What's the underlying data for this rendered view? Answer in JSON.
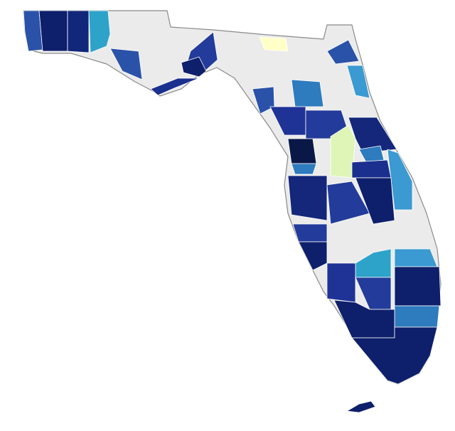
{
  "map": {
    "land_fill": "#ebebeb",
    "region_fills": [
      "#2a52a8",
      "#0e1f6b",
      "#11277a",
      "#2ea3c9",
      "#233b9a",
      "#1b2f8f",
      "#ffffc8",
      "#3a9ad1",
      "#2e7bbe",
      "#1f3296",
      "#dff5b8",
      "#14277a",
      "#0a1848"
    ]
  }
}
